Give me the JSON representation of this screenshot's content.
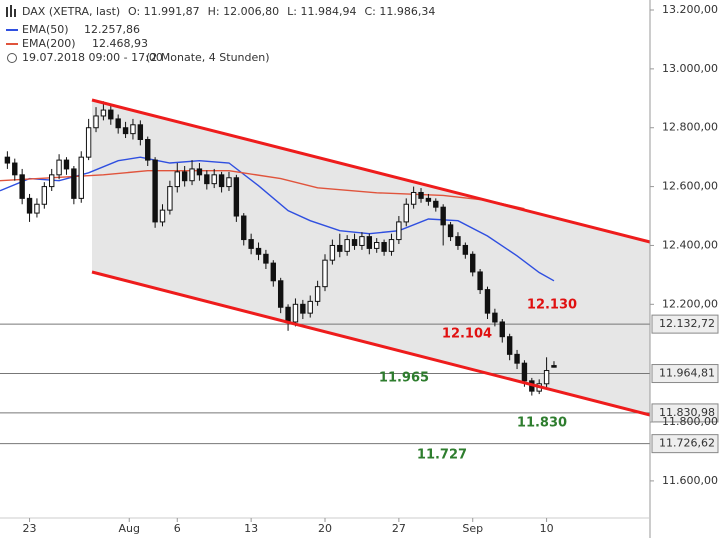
{
  "chart_data": {
    "type": "candlestick",
    "title": "DAX (XETRA, last)",
    "ohlc_labels": [
      "O: 11.991,87",
      "H: 12.006,80",
      "L: 11.984,94",
      "C: 11.986,34"
    ],
    "subtitle": "19.07.2018 09:00 - 17:00",
    "period": "(2 Monate, 4 Stunden)",
    "xlim": [
      -1,
      87
    ],
    "ylim": [
      11406,
      13234
    ],
    "xticks": [
      {
        "value": 3,
        "label": "23"
      },
      {
        "value": 16.5,
        "label": "Aug"
      },
      {
        "value": 23,
        "label": "6"
      },
      {
        "value": 33,
        "label": "13"
      },
      {
        "value": 43,
        "label": "20"
      },
      {
        "value": 53,
        "label": "27"
      },
      {
        "value": 63,
        "label": "Sep"
      },
      {
        "value": 73,
        "label": "10"
      }
    ],
    "yticks": [
      {
        "value": 13200,
        "label": "13.200,00"
      },
      {
        "value": 13000,
        "label": "13.000,00"
      },
      {
        "value": 12800,
        "label": "12.800,00"
      },
      {
        "value": 12600,
        "label": "12.600,00"
      },
      {
        "value": 12400,
        "label": "12.400,00"
      },
      {
        "value": 12200,
        "label": "12.200,00"
      },
      {
        "value": 11800,
        "label": "11.800,00"
      },
      {
        "value": 11600,
        "label": "11.600,00"
      }
    ],
    "candles": {
      "open": [
        12700,
        12680,
        12640,
        12560,
        12510,
        12540,
        12600,
        12640,
        12690,
        12660,
        12560,
        12700,
        12800,
        12840,
        12860,
        12830,
        12800,
        12780,
        12810,
        12760,
        12690,
        12480,
        12520,
        12600,
        12650,
        12620,
        12660,
        12640,
        12610,
        12640,
        12600,
        12630,
        12500,
        12420,
        12390,
        12370,
        12340,
        12280,
        12190,
        12140,
        12200,
        12170,
        12210,
        12260,
        12350,
        12400,
        12380,
        12420,
        12400,
        12430,
        12390,
        12410,
        12380,
        12420,
        12480,
        12540,
        12580,
        12560,
        12550,
        12530,
        12470,
        12430,
        12400,
        12370,
        12310,
        12250,
        12170,
        12140,
        12090,
        12030,
        12000,
        11940,
        11905,
        11930,
        11991.87
      ],
      "high": [
        12720,
        12695,
        12660,
        12575,
        12560,
        12615,
        12660,
        12710,
        12700,
        12670,
        12720,
        12830,
        12870,
        12890,
        12875,
        12845,
        12820,
        12830,
        12825,
        12770,
        12700,
        12540,
        12620,
        12680,
        12670,
        12690,
        12680,
        12655,
        12660,
        12650,
        12650,
        12640,
        12510,
        12440,
        12410,
        12385,
        12350,
        12290,
        12200,
        12220,
        12215,
        12230,
        12280,
        12370,
        12420,
        12440,
        12435,
        12440,
        12445,
        12440,
        12425,
        12420,
        12440,
        12500,
        12560,
        12600,
        12595,
        12575,
        12560,
        12540,
        12480,
        12445,
        12410,
        12380,
        12320,
        12260,
        12185,
        12150,
        12100,
        12045,
        12010,
        11950,
        11945,
        12020,
        12006.8
      ],
      "low": [
        12660,
        12620,
        12540,
        12480,
        12495,
        12525,
        12585,
        12625,
        12640,
        12540,
        12545,
        12690,
        12785,
        12825,
        12810,
        12780,
        12765,
        12760,
        12740,
        12670,
        12460,
        12465,
        12505,
        12580,
        12600,
        12605,
        12620,
        12590,
        12595,
        12580,
        12585,
        12480,
        12400,
        12370,
        12350,
        12320,
        12260,
        12170,
        12110,
        12125,
        12150,
        12155,
        12195,
        12245,
        12335,
        12360,
        12365,
        12385,
        12385,
        12370,
        12375,
        12365,
        12365,
        12405,
        12465,
        12525,
        12545,
        12535,
        12515,
        12400,
        12415,
        12385,
        12355,
        12295,
        12235,
        12150,
        12125,
        12070,
        12010,
        11980,
        11920,
        11890,
        11895,
        11915,
        11984.94
      ],
      "close": [
        12680,
        12640,
        12560,
        12510,
        12540,
        12600,
        12640,
        12690,
        12660,
        12560,
        12700,
        12800,
        12840,
        12860,
        12830,
        12800,
        12780,
        12810,
        12760,
        12690,
        12480,
        12520,
        12600,
        12650,
        12620,
        12660,
        12640,
        12610,
        12640,
        12600,
        12630,
        12500,
        12420,
        12390,
        12370,
        12340,
        12280,
        12190,
        12140,
        12200,
        12170,
        12210,
        12260,
        12350,
        12400,
        12380,
        12420,
        12400,
        12430,
        12390,
        12410,
        12380,
        12420,
        12480,
        12540,
        12580,
        12560,
        12550,
        12530,
        12470,
        12430,
        12400,
        12370,
        12310,
        12250,
        12170,
        12140,
        12090,
        12030,
        12000,
        11940,
        11905,
        11930,
        11975,
        11986.34
      ]
    },
    "series": [
      {
        "name": "EMA(50)",
        "value_label": "12.257,86",
        "color": "#2f4fe0",
        "x": [
          -1,
          3,
          7,
          11,
          15,
          18,
          22,
          26,
          30,
          34,
          38,
          41,
          45,
          49,
          53,
          57,
          61,
          65,
          69,
          72,
          74
        ],
        "values": [
          12586,
          12627,
          12620,
          12647,
          12688,
          12700,
          12680,
          12688,
          12680,
          12603,
          12518,
          12484,
          12450,
          12440,
          12450,
          12490,
          12484,
          12432,
          12365,
          12308,
          12280
        ]
      },
      {
        "name": "EMA(200)",
        "value_label": "12.468,93",
        "color": "#e0543c",
        "x": [
          -1,
          13,
          19,
          30,
          37,
          42,
          50,
          59,
          65,
          70
        ],
        "values": [
          12620,
          12640,
          12654,
          12654,
          12627,
          12596,
          12579,
          12570,
          12553,
          12525
        ]
      }
    ],
    "levels": [
      {
        "value": 12132.72,
        "label": "12.132,72"
      },
      {
        "value": 11964.81,
        "label": "11.964,81"
      },
      {
        "value": 11830.98,
        "label": "11.830,98"
      },
      {
        "value": 11726.62,
        "label": "11.726,62"
      }
    ],
    "annotations": [
      {
        "text": "12.130",
        "color": "#e01010"
      },
      {
        "text": "12.104",
        "color": "#e01010"
      },
      {
        "text": "11.965",
        "color": "#2e7d2e"
      },
      {
        "text": "11.830",
        "color": "#2e7d2e"
      },
      {
        "text": "11.727",
        "color": "#2e7d2e"
      }
    ]
  }
}
